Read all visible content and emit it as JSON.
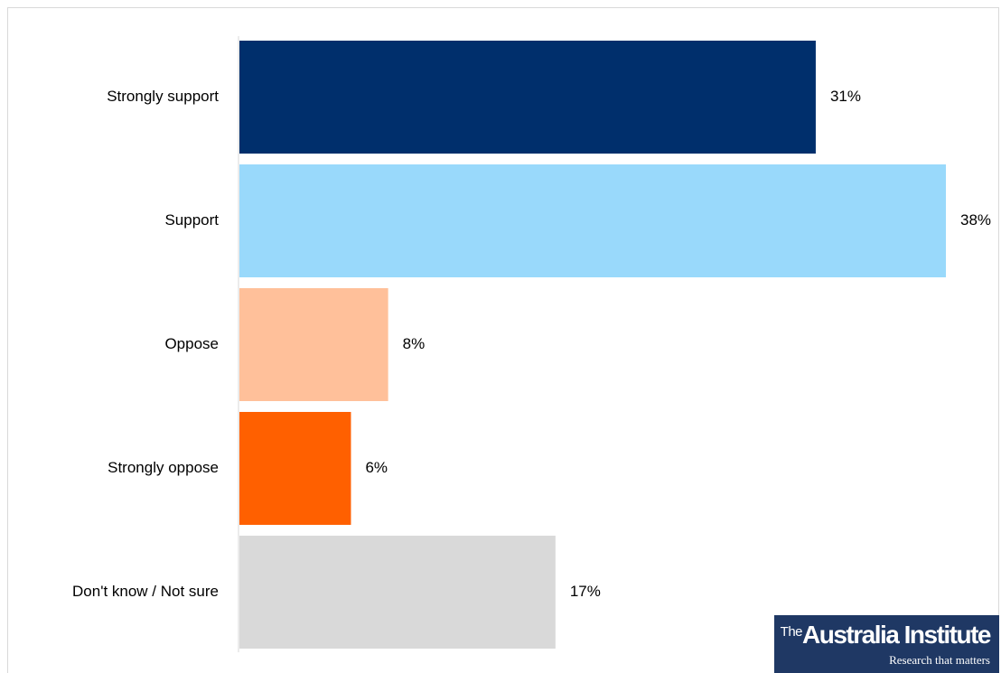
{
  "chart_data": {
    "type": "bar",
    "orientation": "horizontal",
    "categories": [
      "Strongly support",
      "Support",
      "Oppose",
      "Strongly oppose",
      "Don't know / Not sure"
    ],
    "values": [
      31,
      38,
      8,
      6,
      17
    ],
    "value_labels": [
      "31%",
      "38%",
      "8%",
      "6%",
      "17%"
    ],
    "colors": [
      "#002f6c",
      "#99d9fb",
      "#ffc09a",
      "#ff6000",
      "#d9d9d9"
    ],
    "xlim": [
      0,
      38
    ],
    "grid": false,
    "legend": "none"
  },
  "logo": {
    "prefix": "The",
    "name": "Australia Institute",
    "tagline": "Research that matters"
  }
}
